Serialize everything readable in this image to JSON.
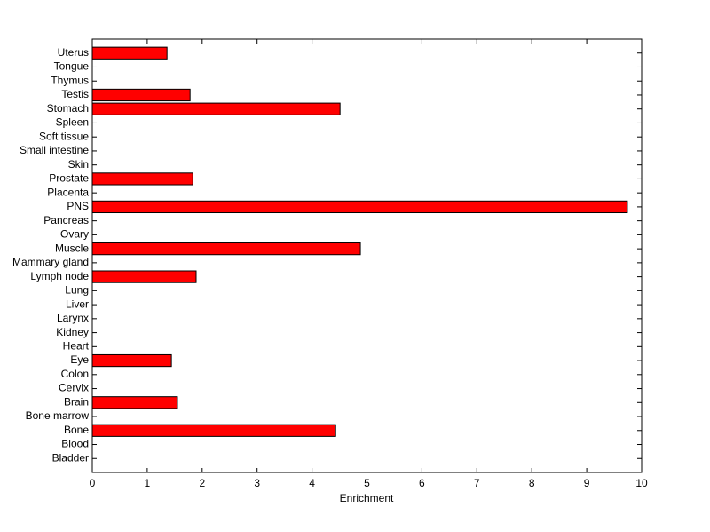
{
  "chart_data": {
    "type": "barh",
    "xlabel": "Enrichment",
    "categories": [
      "Bladder",
      "Blood",
      "Bone",
      "Bone marrow",
      "Brain",
      "Cervix",
      "Colon",
      "Eye",
      "Heart",
      "Kidney",
      "Larynx",
      "Liver",
      "Lung",
      "Lymph node",
      "Mammary gland",
      "Muscle",
      "Ovary",
      "Pancreas",
      "PNS",
      "Placenta",
      "Prostate",
      "Skin",
      "Small intestine",
      "Soft tissue",
      "Spleen",
      "Stomach",
      "Testis",
      "Thymus",
      "Tongue",
      "Uterus"
    ],
    "values": [
      0,
      0,
      4.43,
      0,
      1.55,
      0,
      0,
      1.44,
      0,
      0,
      0,
      0,
      0,
      1.89,
      0,
      4.88,
      0,
      0,
      9.74,
      0,
      1.83,
      0,
      0,
      0,
      0,
      4.51,
      1.78,
      0,
      0,
      1.36
    ],
    "color": "#ff0000",
    "xlim": [
      0,
      10
    ],
    "xticks": [
      0,
      1,
      2,
      3,
      4,
      5,
      6,
      7,
      8,
      9,
      10
    ]
  }
}
